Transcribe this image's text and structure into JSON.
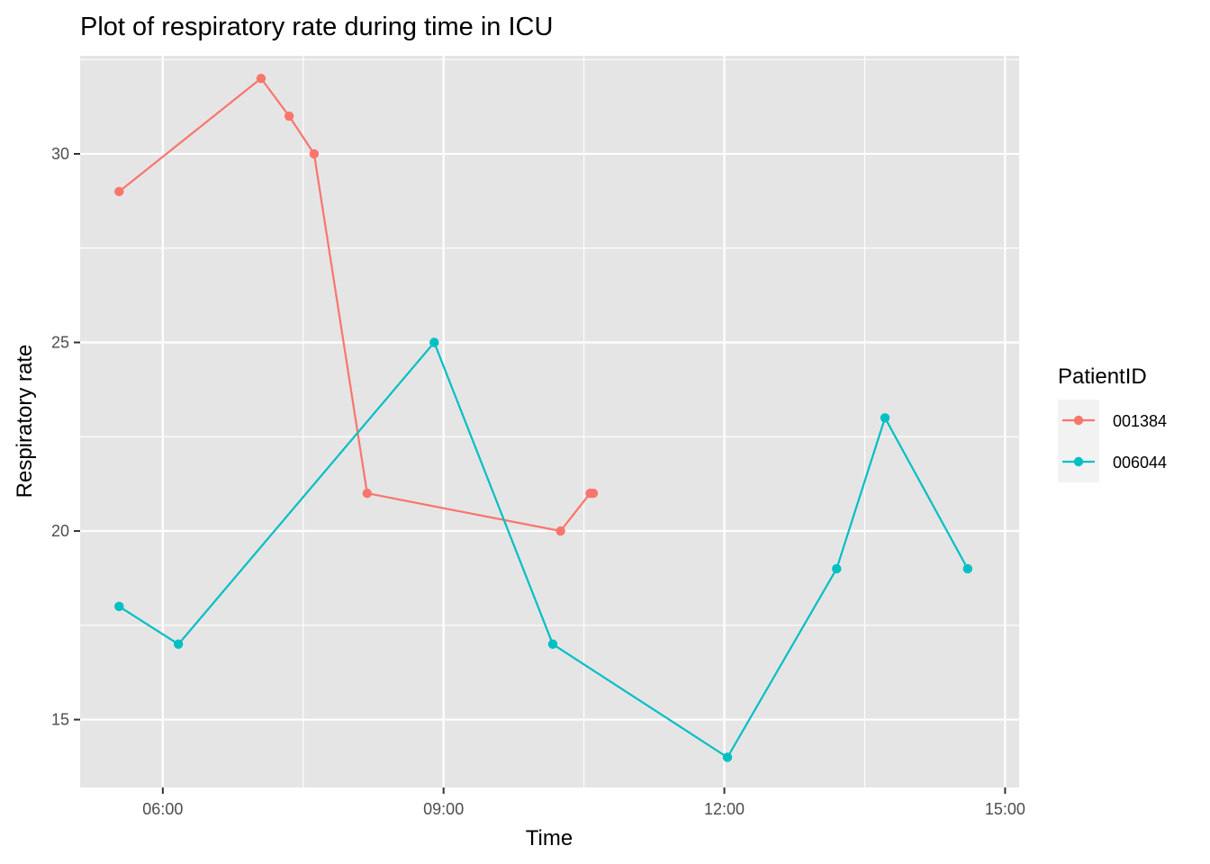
{
  "chart_data": {
    "type": "line",
    "title": "Plot of respiratory rate during time in ICU",
    "xlabel": "Time",
    "ylabel": "Respiratory rate",
    "x_ticks": [
      "06:00",
      "09:00",
      "12:00",
      "15:00"
    ],
    "y_ticks": [
      15,
      20,
      25,
      30
    ],
    "xlim": [
      "05:07",
      "15:09"
    ],
    "ylim": [
      13.2,
      32.6
    ],
    "grid": true,
    "background": "#e5e5e5",
    "legend": {
      "title": "PatientID",
      "position": "right"
    },
    "series": [
      {
        "name": "001384",
        "color": "#f8766d",
        "points": [
          {
            "x": "05:32",
            "y": 29
          },
          {
            "x": "07:03",
            "y": 32
          },
          {
            "x": "07:21",
            "y": 31
          },
          {
            "x": "07:37",
            "y": 30
          },
          {
            "x": "08:11",
            "y": 21
          },
          {
            "x": "10:15",
            "y": 20
          },
          {
            "x": "10:34",
            "y": 21
          },
          {
            "x": "10:36",
            "y": 21
          }
        ]
      },
      {
        "name": "006044",
        "color": "#00bfc4",
        "points": [
          {
            "x": "05:32",
            "y": 18
          },
          {
            "x": "06:10",
            "y": 17
          },
          {
            "x": "08:54",
            "y": 25
          },
          {
            "x": "10:10",
            "y": 17
          },
          {
            "x": "12:02",
            "y": 14
          },
          {
            "x": "13:12",
            "y": 19
          },
          {
            "x": "13:43",
            "y": 23
          },
          {
            "x": "14:36",
            "y": 19
          }
        ]
      }
    ]
  }
}
